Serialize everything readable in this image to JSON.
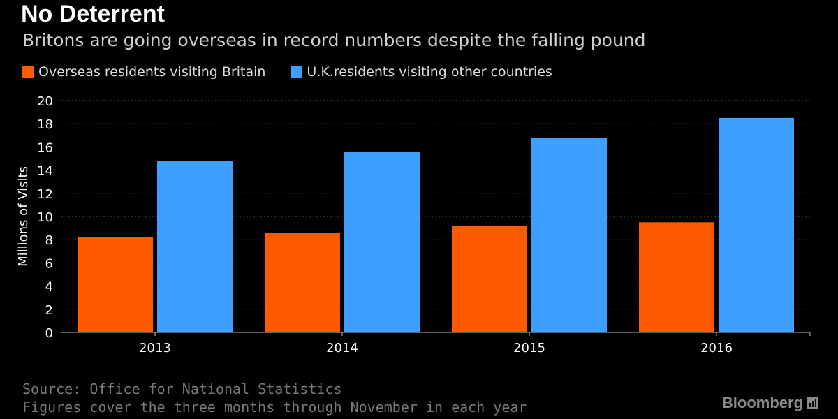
{
  "header": {
    "title": "No Deterrent",
    "subtitle": "Britons are going overseas in record numbers despite the falling pound"
  },
  "legend": [
    {
      "label": "Overseas residents visiting Britain",
      "color": "#ff5a00"
    },
    {
      "label": "U.K.residents visiting other countries",
      "color": "#3d9fff"
    }
  ],
  "footer": {
    "source": "Source: Office for National Statistics",
    "note": "Figures cover the three months through November in each year",
    "brand": "Bloomberg",
    "brand_icon": "bloomberg-bars-icon"
  },
  "chart_data": {
    "type": "bar",
    "categories": [
      "2013",
      "2014",
      "2015",
      "2016"
    ],
    "series": [
      {
        "name": "Overseas residents visiting Britain",
        "values": [
          8.2,
          8.6,
          9.2,
          9.5
        ],
        "color": "#ff5a00"
      },
      {
        "name": "U.K.residents visiting other countries",
        "values": [
          14.8,
          15.6,
          16.8,
          18.5
        ],
        "color": "#3d9fff"
      }
    ],
    "ylabel": "Millions of Visits",
    "ylim": [
      0,
      20
    ],
    "yticks": [
      0,
      2,
      4,
      6,
      8,
      10,
      12,
      14,
      16,
      18,
      20
    ],
    "grid": true,
    "legend_position": "top-left"
  }
}
